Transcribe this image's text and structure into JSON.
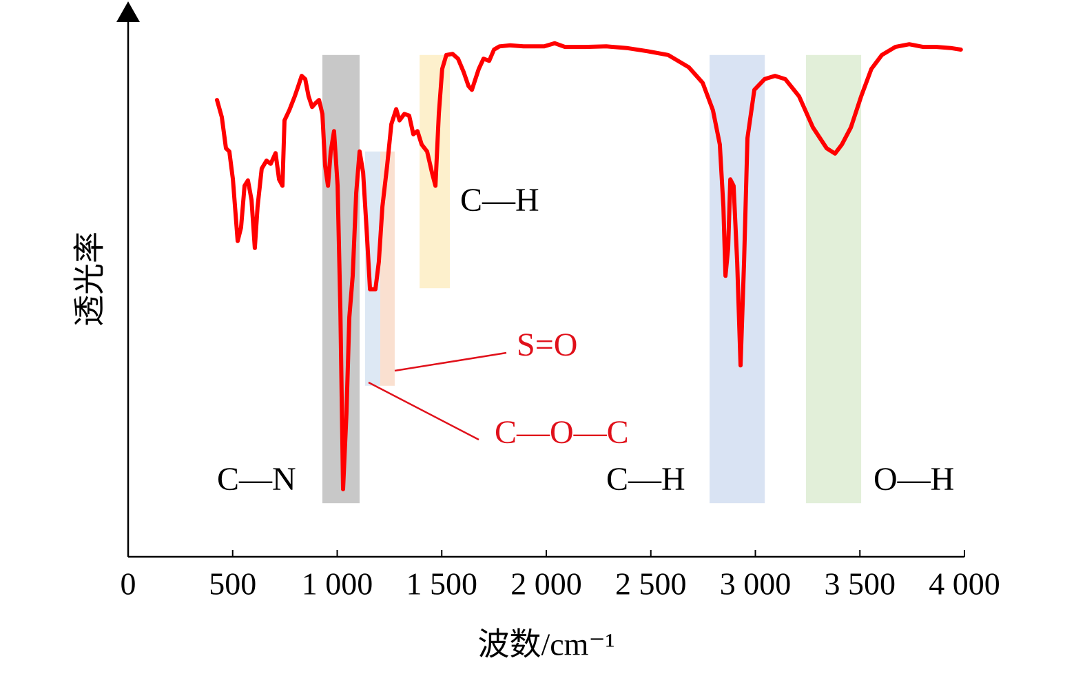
{
  "chart_data": {
    "type": "line",
    "xlabel": "波数/cm⁻¹",
    "ylabel": "透光率",
    "xlim": [
      0,
      4000
    ],
    "xticks": [
      0,
      500,
      {
        "value": 1000,
        "label": "1 000"
      },
      {
        "value": 1500,
        "label": "1 500"
      },
      {
        "value": 2000,
        "label": "2 000"
      },
      {
        "value": 2500,
        "label": "2 500"
      },
      {
        "value": 3000,
        "label": "3 000"
      },
      {
        "value": 3500,
        "label": "3 500"
      },
      {
        "value": 4000,
        "label": "4 000"
      }
    ],
    "ylim": [
      0,
      100
    ],
    "series": [
      {
        "color": "#ff0000",
        "x": [
          425,
          448,
          468,
          484,
          501,
          524,
          540,
          557,
          573,
          590,
          606,
          619,
          639,
          662,
          682,
          705,
          722,
          738,
          748,
          771,
          797,
          814,
          830,
          847,
          863,
          880,
          896,
          913,
          929,
          942,
          956,
          969,
          985,
          1002,
          1015,
          1028,
          1044,
          1058,
          1074,
          1091,
          1107,
          1124,
          1140,
          1157,
          1183,
          1199,
          1216,
          1239,
          1259,
          1282,
          1298,
          1321,
          1344,
          1364,
          1384,
          1404,
          1430,
          1453,
          1470,
          1486,
          1502,
          1522,
          1552,
          1578,
          1605,
          1628,
          1644,
          1661,
          1677,
          1700,
          1727,
          1750,
          1776,
          1825,
          1891,
          1990,
          2040,
          2089,
          2188,
          2287,
          2385,
          2484,
          2583,
          2682,
          2748,
          2797,
          2830,
          2847,
          2857,
          2870,
          2880,
          2896,
          2913,
          2929,
          2946,
          2962,
          2995,
          3044,
          3094,
          3143,
          3209,
          3275,
          3341,
          3381,
          3414,
          3457,
          3506,
          3555,
          3605,
          3670,
          3736,
          3802,
          3868,
          3934,
          3983
        ],
        "values": [
          85.2,
          82.0,
          76.2,
          75.6,
          70.4,
          58.9,
          61.4,
          69.2,
          70.2,
          66.6,
          57.6,
          65.3,
          72.4,
          73.9,
          73.3,
          75.3,
          70.4,
          69.2,
          81.4,
          83.3,
          85.9,
          87.8,
          89.7,
          89.1,
          85.9,
          83.9,
          84.6,
          85.2,
          82.6,
          73.0,
          69.2,
          75.6,
          79.4,
          69.2,
          46.0,
          12.6,
          26.7,
          44.7,
          52.4,
          67.9,
          75.6,
          71.7,
          61.4,
          49.9,
          49.9,
          55.0,
          65.3,
          73.0,
          80.7,
          83.5,
          81.4,
          82.6,
          82.3,
          78.8,
          79.4,
          76.9,
          75.6,
          71.7,
          69.2,
          82.6,
          91.0,
          93.6,
          93.8,
          92.9,
          90.4,
          87.8,
          87.1,
          89.1,
          91.0,
          92.9,
          92.5,
          94.6,
          95.2,
          95.4,
          95.2,
          95.2,
          95.8,
          95.1,
          95.1,
          95.2,
          94.9,
          94.3,
          93.6,
          91.3,
          88.4,
          83.3,
          76.9,
          65.3,
          52.4,
          57.6,
          70.4,
          69.2,
          55.0,
          35.7,
          55.0,
          78.1,
          87.1,
          89.1,
          89.7,
          89.1,
          85.9,
          80.1,
          76.2,
          75.2,
          76.9,
          80.1,
          85.9,
          91.0,
          93.6,
          95.1,
          95.6,
          95.1,
          95.1,
          94.9,
          94.6
        ]
      }
    ],
    "regions": [
      {
        "x": [
          929,
          1107
        ],
        "y": [
          10,
          93.6
        ],
        "color": "#c8c8c8"
      },
      {
        "x": [
          1133,
          1206
        ],
        "y": [
          31.9,
          75.6
        ],
        "color": "#dde8f4"
      },
      {
        "x": [
          1206,
          1275
        ],
        "y": [
          31.9,
          75.6
        ],
        "color": "#fae0d0"
      },
      {
        "x": [
          1394,
          1539
        ],
        "y": [
          50.1,
          93.6
        ],
        "color": "#fdf0cc"
      },
      {
        "x": [
          2781,
          3045
        ],
        "y": [
          10,
          93.6
        ],
        "color": "#d9e3f3"
      },
      {
        "x": [
          3242,
          3506
        ],
        "y": [
          10,
          93.6
        ],
        "color": "#e2efd9"
      }
    ],
    "annotations": [
      {
        "text": "C—H",
        "color": "#000000"
      },
      {
        "text": "S=O",
        "color": "#e0101a"
      },
      {
        "text": "C—O—C",
        "color": "#e0101a"
      },
      {
        "text": "C—N",
        "color": "#000000"
      },
      {
        "text": "C—H",
        "color": "#000000"
      },
      {
        "text": "O—H",
        "color": "#000000"
      }
    ]
  }
}
